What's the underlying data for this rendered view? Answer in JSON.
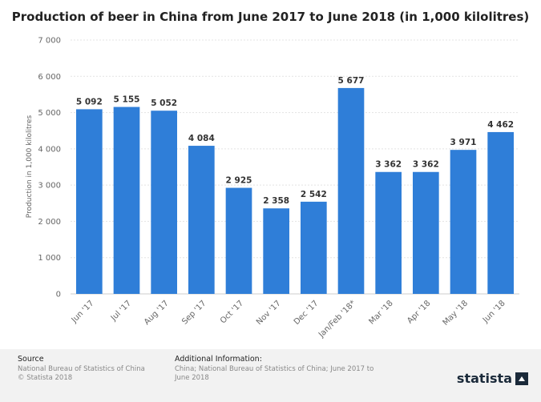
{
  "chart_data": {
    "type": "bar",
    "title": "Production of beer in China from June 2017 to June 2018 (in 1,000 kilolitres)",
    "ylabel": "Production in 1,000 kilolitres",
    "xlabel": "",
    "categories": [
      "Jun '17",
      "Jul '17",
      "Aug '17",
      "Sep '17",
      "Oct '17",
      "Nov '17",
      "Dec '17",
      "Jan/Feb '18*",
      "Mar '18",
      "Apr '18",
      "May '18",
      "Jun '18"
    ],
    "values": [
      5092,
      5155,
      5052,
      4084,
      2925,
      2358,
      2542,
      5677,
      3362,
      3362,
      3971,
      4462
    ],
    "value_labels": [
      "5 092",
      "5 155",
      "5 052",
      "4 084",
      "2 925",
      "2 358",
      "2 542",
      "5 677",
      "3 362",
      "3 362",
      "3 971",
      "4 462"
    ],
    "yticks": [
      0,
      1000,
      2000,
      3000,
      4000,
      5000,
      6000,
      7000
    ],
    "ytick_labels": [
      "0",
      "1 000",
      "2 000",
      "3 000",
      "4 000",
      "5 000",
      "6 000",
      "7 000"
    ],
    "ylim": [
      0,
      7000
    ],
    "grid": true,
    "bar_color": "#2f7ed8"
  },
  "footer": {
    "source_heading": "Source",
    "source_lines": [
      "National Bureau of Statistics of China",
      "© Statista 2018"
    ],
    "info_heading": "Additional Information:",
    "info_text": "China; National Bureau of Statistics of China; June 2017 to June 2018",
    "brand": "statista"
  }
}
